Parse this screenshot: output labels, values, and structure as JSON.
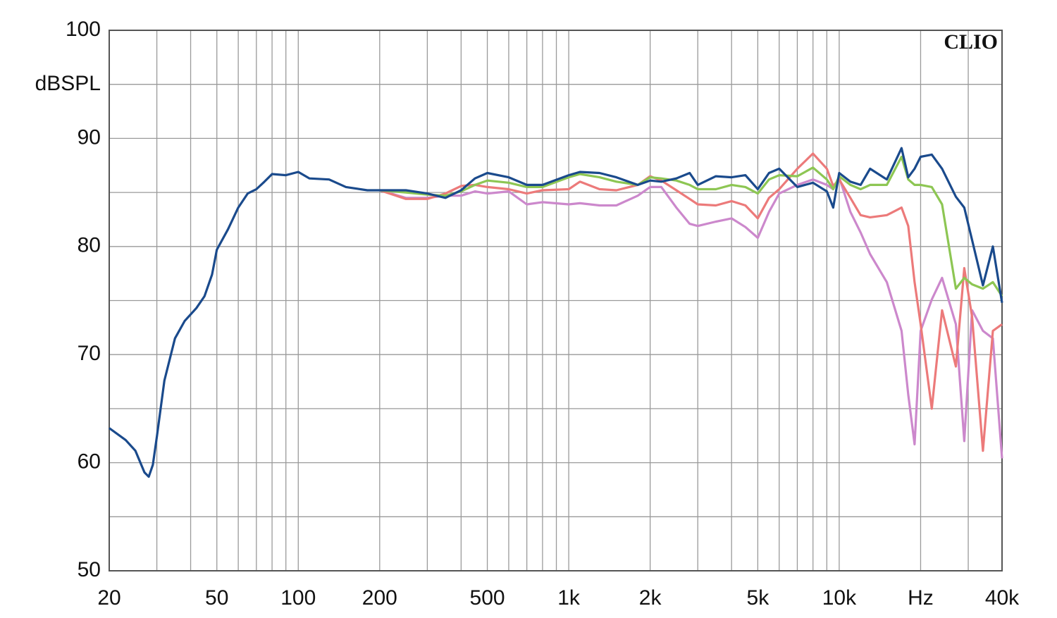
{
  "chart_data": {
    "type": "line",
    "ylabel": "dBSPL",
    "annotation": "CLIO",
    "xscale": "log",
    "grid": true,
    "xlim": [
      20,
      40000
    ],
    "ylim": [
      50,
      100
    ],
    "xticks": [
      20,
      50,
      100,
      200,
      500,
      {
        "value": 1000,
        "label": "1k"
      },
      {
        "value": 2000,
        "label": "2k"
      },
      {
        "value": 5000,
        "label": "5k"
      },
      {
        "value": 10000,
        "label": "10k"
      },
      {
        "value": 20000,
        "label": "Hz"
      },
      {
        "value": 40000,
        "label": "40k"
      }
    ],
    "minor_xticks": [
      30,
      40,
      60,
      70,
      80,
      90,
      300,
      400,
      600,
      700,
      800,
      900,
      3000,
      4000,
      6000,
      7000,
      8000,
      9000,
      30000
    ],
    "yticks": [
      50,
      60,
      70,
      80,
      90,
      100
    ],
    "minor_yticks": [
      55,
      65,
      75,
      85,
      95
    ],
    "x": [
      20,
      23,
      25,
      27,
      28,
      29,
      30,
      32,
      35,
      38,
      42,
      45,
      48,
      50,
      55,
      60,
      65,
      70,
      75,
      80,
      90,
      100,
      110,
      130,
      150,
      180,
      200,
      250,
      300,
      350,
      400,
      450,
      500,
      600,
      700,
      800,
      1000,
      1100,
      1300,
      1500,
      1800,
      2000,
      2200,
      2500,
      2800,
      3000,
      3500,
      4000,
      4500,
      5000,
      5500,
      6000,
      7000,
      8000,
      9000,
      9500,
      10000,
      11000,
      12000,
      13000,
      15000,
      17000,
      18000,
      19000,
      20000,
      22000,
      24000,
      27000,
      29000,
      31000,
      34000,
      37000,
      40000
    ],
    "series": [
      {
        "color": "#cc88cc",
        "values": [
          null,
          null,
          null,
          null,
          null,
          null,
          null,
          null,
          null,
          null,
          null,
          null,
          null,
          null,
          null,
          null,
          null,
          null,
          null,
          null,
          null,
          null,
          null,
          null,
          null,
          null,
          85.2,
          84.5,
          84.5,
          84.7,
          84.7,
          85.1,
          84.9,
          85.1,
          83.9,
          84.1,
          83.9,
          84.0,
          83.8,
          83.8,
          84.7,
          85.5,
          85.5,
          83.6,
          82.1,
          81.9,
          82.3,
          82.6,
          81.8,
          80.8,
          83.2,
          84.9,
          85.7,
          86.2,
          85.7,
          85.3,
          86.4,
          83.2,
          81.3,
          79.3,
          76.7,
          72.2,
          66.3,
          61.7,
          72.2,
          75.1,
          77.1,
          72.8,
          62.0,
          74.1,
          72.2,
          71.5,
          60.4
        ]
      },
      {
        "color": "#ec7a7a",
        "values": [
          null,
          null,
          null,
          null,
          null,
          null,
          null,
          null,
          null,
          null,
          null,
          null,
          null,
          null,
          null,
          null,
          null,
          null,
          null,
          null,
          null,
          null,
          null,
          null,
          null,
          null,
          85.2,
          84.4,
          84.4,
          84.9,
          85.6,
          85.7,
          85.5,
          85.3,
          84.9,
          85.2,
          85.3,
          86.0,
          85.3,
          85.2,
          85.7,
          86.5,
          86.1,
          85.2,
          84.4,
          83.9,
          83.8,
          84.2,
          83.8,
          82.6,
          84.5,
          85.3,
          87.2,
          88.6,
          87.2,
          85.6,
          86.2,
          84.5,
          82.9,
          82.7,
          82.9,
          83.6,
          81.9,
          76.7,
          72.8,
          65.0,
          74.1,
          68.9,
          78.0,
          73.5,
          61.1,
          72.2,
          72.8
        ]
      },
      {
        "color": "#8dc653",
        "values": [
          null,
          null,
          null,
          null,
          null,
          null,
          null,
          null,
          null,
          null,
          null,
          null,
          null,
          null,
          null,
          null,
          null,
          null,
          null,
          null,
          null,
          null,
          null,
          null,
          null,
          null,
          85.2,
          85.0,
          84.8,
          84.7,
          85.1,
          85.7,
          86.1,
          85.9,
          85.5,
          85.5,
          86.4,
          86.7,
          86.4,
          86.0,
          85.7,
          86.4,
          86.3,
          86.1,
          85.7,
          85.3,
          85.3,
          85.7,
          85.5,
          84.9,
          86.2,
          86.6,
          86.5,
          87.3,
          86.2,
          85.3,
          86.5,
          85.7,
          85.3,
          85.7,
          85.7,
          88.3,
          86.2,
          85.7,
          85.7,
          85.5,
          83.9,
          76.1,
          77.1,
          76.5,
          76.1,
          76.7,
          75.4
        ]
      },
      {
        "color": "#1a4a8c",
        "values": [
          63.2,
          62.1,
          61.1,
          59.1,
          58.7,
          59.8,
          62.4,
          67.6,
          71.5,
          73.1,
          74.3,
          75.4,
          77.4,
          79.7,
          81.6,
          83.6,
          84.9,
          85.3,
          86.0,
          86.7,
          86.6,
          86.9,
          86.3,
          86.2,
          85.5,
          85.2,
          85.2,
          85.2,
          84.9,
          84.5,
          85.2,
          86.3,
          86.8,
          86.4,
          85.7,
          85.7,
          86.6,
          86.9,
          86.8,
          86.4,
          85.7,
          86.1,
          86.0,
          86.3,
          86.8,
          85.7,
          86.5,
          86.4,
          86.6,
          85.3,
          86.8,
          87.2,
          85.5,
          85.9,
          85.1,
          83.6,
          86.8,
          86.0,
          85.7,
          87.2,
          86.2,
          89.1,
          86.4,
          87.2,
          88.3,
          88.5,
          87.2,
          84.6,
          83.6,
          80.6,
          76.4,
          80.0,
          74.8
        ]
      }
    ]
  }
}
